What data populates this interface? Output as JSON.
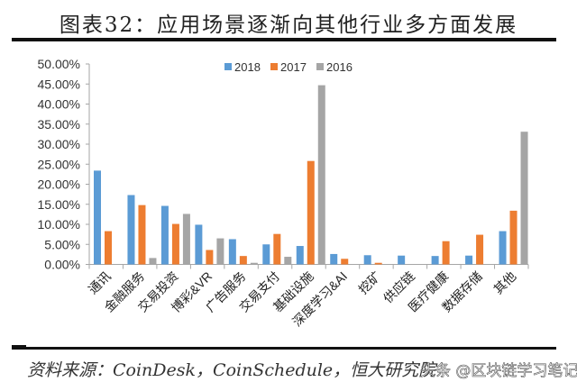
{
  "header": {
    "title": "图表32：应用场景逐渐向其他行业多方面发展"
  },
  "footer": {
    "source": "资料来源：CoinDesk，CoinSchedule，恒大研究院",
    "watermark": "头条 @区块链学习笔记"
  },
  "colors": {
    "2018": "#5b9bd5",
    "2017": "#ed7d31",
    "2016": "#a5a5a5"
  },
  "chart_data": {
    "type": "bar",
    "title": "图表32：应用场景逐渐向其他行业多方面发展",
    "xlabel": "",
    "ylabel": "",
    "ylim": [
      0,
      50
    ],
    "yticks": [
      "0.00%",
      "5.00%",
      "10.00%",
      "15.00%",
      "20.00%",
      "25.00%",
      "30.00%",
      "35.00%",
      "40.00%",
      "45.00%",
      "50.00%"
    ],
    "grid": false,
    "legend_position": "top",
    "categories": [
      "通讯",
      "金融服务",
      "交易投资",
      "博彩&VR",
      "广告服务",
      "交易支付",
      "基础设施",
      "深度学习&AI",
      "挖矿",
      "供应链",
      "医疗健康",
      "数据存储",
      "其他"
    ],
    "series": [
      {
        "name": "2018",
        "color": "#5b9bd5",
        "values": [
          23.4,
          17.3,
          14.6,
          9.9,
          6.3,
          5.0,
          4.6,
          2.6,
          2.3,
          2.2,
          2.1,
          2.2,
          8.3
        ]
      },
      {
        "name": "2017",
        "color": "#ed7d31",
        "values": [
          8.3,
          14.8,
          10.1,
          3.6,
          2.1,
          7.6,
          25.8,
          1.4,
          0.4,
          0,
          5.8,
          7.4,
          13.4
        ]
      },
      {
        "name": "2016",
        "color": "#a5a5a5",
        "values": [
          0,
          1.6,
          12.6,
          6.5,
          0.4,
          1.9,
          44.7,
          0,
          0,
          0,
          0,
          0,
          33.1
        ]
      }
    ]
  }
}
